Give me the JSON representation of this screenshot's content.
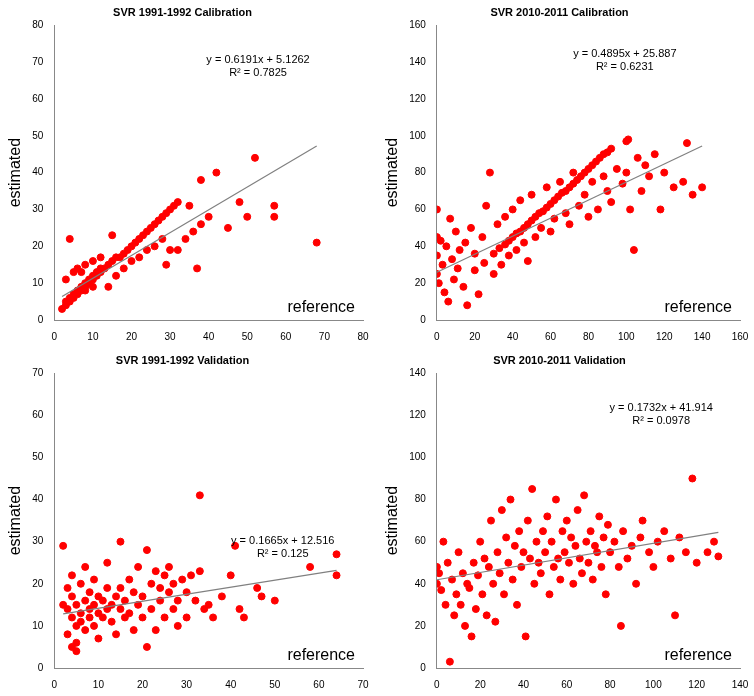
{
  "chart_data": [
    {
      "type": "scatter",
      "title": "SVR 1991-1992 Calibration",
      "x_label": "reference",
      "y_label": "estimated",
      "color": "#ff0000",
      "marker": "circle",
      "grid": false,
      "xlim": [
        0,
        80
      ],
      "xticks": [
        0,
        10,
        20,
        30,
        40,
        50,
        60,
        70,
        80
      ],
      "ylim": [
        0,
        80
      ],
      "yticks": [
        0,
        10,
        20,
        30,
        40,
        50,
        60,
        70,
        80
      ],
      "annotations": [
        "y = 0.6191x + 5.1262",
        "R² = 0.7825"
      ],
      "trendline": {
        "slope": 0.6191,
        "intercept": 5.1262,
        "x": [
          2,
          68
        ],
        "color": "#808080"
      },
      "x": [
        2,
        3,
        3,
        4,
        4,
        5,
        5,
        6,
        6,
        7,
        7,
        8,
        8,
        9,
        9,
        10,
        10,
        11,
        11,
        12,
        12,
        13,
        14,
        15,
        16,
        17,
        18,
        19,
        20,
        21,
        22,
        23,
        24,
        25,
        26,
        27,
        28,
        29,
        30,
        31,
        32,
        4,
        5,
        3,
        6,
        8,
        7,
        10,
        15,
        12,
        8,
        10,
        14,
        16,
        18,
        20,
        22,
        24,
        26,
        28,
        30,
        32,
        34,
        36,
        37,
        38,
        40,
        42,
        38,
        35,
        48,
        50,
        52,
        57,
        57,
        68,
        45,
        29
      ],
      "values": [
        3,
        4,
        5,
        5,
        6,
        6,
        7,
        7,
        8,
        8,
        9,
        9,
        10,
        10,
        11,
        11,
        12,
        12,
        13,
        13,
        14,
        14,
        15,
        16,
        17,
        17,
        18,
        19,
        20,
        21,
        22,
        23,
        24,
        25,
        26,
        27,
        28,
        29,
        30,
        31,
        32,
        22,
        13,
        11,
        14,
        15,
        13,
        16,
        23,
        17,
        8,
        9,
        9,
        12,
        14,
        16,
        17,
        19,
        20,
        22,
        19,
        19,
        22,
        24,
        14,
        26,
        28,
        40,
        38,
        31,
        32,
        28,
        44,
        28,
        31,
        21,
        25,
        15
      ]
    },
    {
      "type": "scatter",
      "title": "SVR 2010-2011 Calibration",
      "x_label": "reference",
      "y_label": "estimated",
      "color": "#ff0000",
      "marker": "circle",
      "grid": false,
      "xlim": [
        0,
        160
      ],
      "xticks": [
        0,
        20,
        40,
        60,
        80,
        100,
        120,
        140,
        160
      ],
      "ylim": [
        0,
        160
      ],
      "yticks": [
        0,
        20,
        40,
        60,
        80,
        100,
        120,
        140,
        160
      ],
      "annotations": [
        "y = 0.4895x + 25.887",
        "R² = 0.6231"
      ],
      "trendline": {
        "slope": 0.4895,
        "intercept": 25.887,
        "x": [
          0,
          140
        ],
        "color": "#808080"
      },
      "x": [
        20,
        25,
        30,
        33,
        36,
        38,
        40,
        42,
        44,
        46,
        48,
        50,
        52,
        54,
        56,
        58,
        60,
        62,
        64,
        66,
        68,
        70,
        72,
        74,
        76,
        78,
        80,
        82,
        84,
        86,
        88,
        90,
        92,
        100,
        101,
        0,
        0,
        0,
        0,
        1,
        2,
        3,
        4,
        5,
        6,
        7,
        8,
        9,
        10,
        11,
        12,
        14,
        15,
        16,
        18,
        20,
        22,
        24,
        26,
        28,
        30,
        32,
        34,
        36,
        38,
        40,
        42,
        44,
        46,
        48,
        50,
        52,
        55,
        58,
        60,
        62,
        65,
        68,
        70,
        72,
        75,
        78,
        80,
        82,
        85,
        88,
        90,
        92,
        95,
        98,
        100,
        102,
        104,
        106,
        108,
        110,
        112,
        115,
        118,
        120,
        125,
        130,
        132,
        135,
        140
      ],
      "values": [
        27,
        31,
        36,
        39,
        41,
        43,
        45,
        47,
        48,
        50,
        52,
        54,
        56,
        58,
        59,
        61,
        63,
        65,
        67,
        69,
        70,
        72,
        74,
        76,
        78,
        80,
        82,
        84,
        86,
        88,
        90,
        91,
        93,
        97,
        98,
        45,
        35,
        25,
        60,
        20,
        43,
        30,
        15,
        40,
        10,
        55,
        33,
        22,
        48,
        28,
        38,
        18,
        42,
        8,
        50,
        36,
        14,
        45,
        62,
        80,
        25,
        52,
        30,
        56,
        35,
        60,
        38,
        65,
        42,
        32,
        68,
        45,
        50,
        72,
        48,
        55,
        75,
        58,
        52,
        80,
        62,
        68,
        56,
        75,
        60,
        78,
        70,
        64,
        82,
        74,
        80,
        60,
        38,
        88,
        70,
        84,
        78,
        90,
        60,
        80,
        72,
        75,
        96,
        68,
        72
      ]
    },
    {
      "type": "scatter",
      "title": "SVR 1991-1992 Validation",
      "x_label": "reference",
      "y_label": "estimated",
      "color": "#ff0000",
      "marker": "circle",
      "grid": false,
      "xlim": [
        0,
        70
      ],
      "xticks": [
        0,
        10,
        20,
        30,
        40,
        50,
        60,
        70
      ],
      "ylim": [
        0,
        70
      ],
      "yticks": [
        0,
        10,
        20,
        30,
        40,
        50,
        60,
        70
      ],
      "annotations": [
        "y = 0.1665x + 12.516",
        "R² = 0.125"
      ],
      "trendline": {
        "slope": 0.1665,
        "intercept": 12.516,
        "x": [
          2,
          64
        ],
        "color": "#808080"
      },
      "x": [
        2,
        2,
        3,
        3,
        3,
        4,
        4,
        4,
        4,
        5,
        5,
        5,
        5,
        6,
        6,
        6,
        7,
        7,
        7,
        8,
        8,
        8,
        9,
        9,
        9,
        10,
        10,
        10,
        11,
        11,
        12,
        12,
        12,
        13,
        13,
        14,
        14,
        15,
        15,
        15,
        16,
        16,
        17,
        17,
        18,
        18,
        19,
        19,
        20,
        20,
        21,
        21,
        22,
        22,
        23,
        23,
        24,
        24,
        25,
        25,
        26,
        26,
        27,
        27,
        28,
        28,
        29,
        30,
        30,
        31,
        32,
        33,
        33,
        34,
        35,
        36,
        38,
        40,
        41,
        42,
        43,
        46,
        47,
        50,
        58,
        64,
        64
      ],
      "values": [
        29,
        15,
        8,
        14,
        19,
        12,
        5,
        17,
        22,
        10,
        6,
        15,
        4,
        13,
        20,
        11,
        16,
        9,
        24,
        14,
        18,
        12,
        15,
        10,
        21,
        17,
        13,
        7,
        16,
        12,
        19,
        14,
        25,
        15,
        11,
        17,
        8,
        14,
        30,
        19,
        16,
        12,
        21,
        13,
        18,
        9,
        15,
        24,
        17,
        12,
        5,
        28,
        20,
        14,
        23,
        9,
        16,
        19,
        22,
        12,
        18,
        24,
        14,
        20,
        16,
        10,
        21,
        12,
        18,
        22,
        16,
        41,
        23,
        14,
        15,
        12,
        17,
        22,
        29,
        14,
        12,
        19,
        17,
        16,
        24,
        27,
        22
      ]
    },
    {
      "type": "scatter",
      "title": "SVR 2010-2011 Validation",
      "x_label": "reference",
      "y_label": "estimated",
      "color": "#ff0000",
      "marker": "circle",
      "grid": false,
      "xlim": [
        0,
        140
      ],
      "xticks": [
        0,
        20,
        40,
        60,
        80,
        100,
        120,
        140
      ],
      "ylim": [
        0,
        140
      ],
      "yticks": [
        0,
        20,
        40,
        60,
        80,
        100,
        120,
        140
      ],
      "annotations": [
        "y = 0.1732x + 41.914",
        "R² = 0.0978"
      ],
      "trendline": {
        "slope": 0.1732,
        "intercept": 41.914,
        "x": [
          0,
          130
        ],
        "color": "#808080"
      },
      "x": [
        0,
        0,
        1,
        2,
        3,
        4,
        5,
        6,
        7,
        8,
        9,
        10,
        11,
        12,
        13,
        14,
        15,
        16,
        17,
        18,
        19,
        20,
        21,
        22,
        23,
        24,
        25,
        26,
        27,
        28,
        29,
        30,
        31,
        32,
        33,
        34,
        35,
        36,
        37,
        38,
        39,
        40,
        41,
        42,
        43,
        44,
        45,
        46,
        47,
        48,
        49,
        50,
        51,
        52,
        53,
        54,
        55,
        56,
        57,
        58,
        59,
        60,
        61,
        62,
        63,
        64,
        65,
        66,
        67,
        68,
        69,
        70,
        71,
        72,
        73,
        74,
        75,
        76,
        77,
        78,
        79,
        80,
        82,
        84,
        85,
        86,
        88,
        90,
        92,
        94,
        95,
        98,
        100,
        102,
        105,
        108,
        110,
        112,
        115,
        118,
        120,
        125,
        128,
        130
      ],
      "values": [
        48,
        40,
        45,
        37,
        60,
        30,
        50,
        3,
        42,
        25,
        35,
        55,
        30,
        45,
        20,
        40,
        38,
        15,
        50,
        28,
        44,
        60,
        35,
        52,
        25,
        48,
        70,
        40,
        22,
        55,
        45,
        75,
        35,
        62,
        50,
        80,
        42,
        58,
        30,
        65,
        48,
        55,
        15,
        70,
        52,
        85,
        40,
        60,
        50,
        45,
        65,
        55,
        72,
        35,
        60,
        48,
        80,
        52,
        42,
        65,
        55,
        70,
        50,
        62,
        40,
        58,
        75,
        52,
        45,
        82,
        60,
        50,
        65,
        42,
        58,
        55,
        72,
        48,
        62,
        35,
        68,
        55,
        60,
        48,
        20,
        65,
        52,
        58,
        40,
        62,
        70,
        55,
        48,
        60,
        65,
        52,
        25,
        62,
        55,
        90,
        50,
        55,
        60,
        53
      ]
    }
  ]
}
